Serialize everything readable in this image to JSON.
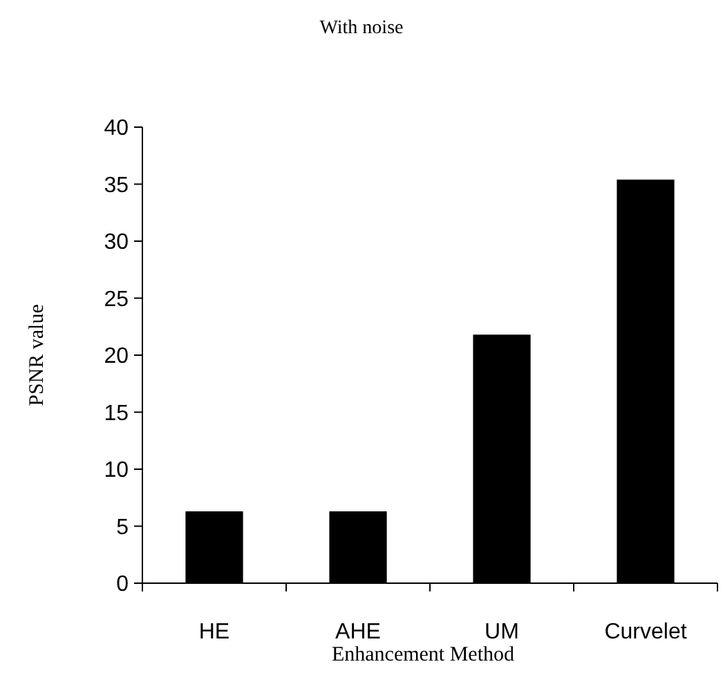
{
  "chart_data": {
    "type": "bar",
    "title": "With noise",
    "xlabel": "Enhancement Method",
    "ylabel": "PSNR value",
    "categories": [
      "HE",
      "AHE",
      "UM",
      "Curvelet"
    ],
    "values": [
      6.3,
      6.3,
      21.8,
      35.4
    ],
    "color": "#000000",
    "ylim": [
      0,
      40
    ],
    "yticks": [
      0,
      5,
      10,
      15,
      20,
      25,
      30,
      35,
      40
    ],
    "grid": false
  }
}
